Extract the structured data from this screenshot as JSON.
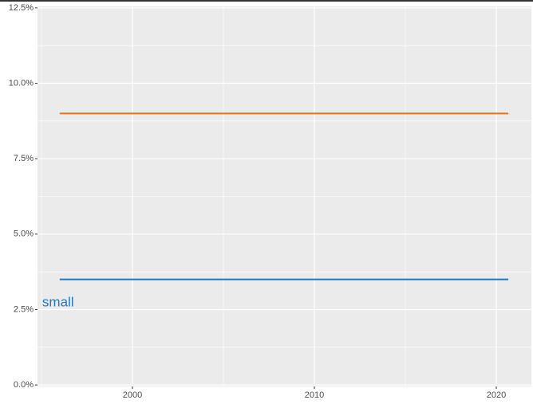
{
  "chart_data": {
    "type": "line",
    "x": [
      1996,
      2020.66
    ],
    "series": [
      {
        "color": "#e8731a",
        "values": [
          9.0,
          9.0
        ]
      },
      {
        "color": "#1f78c1",
        "values": [
          3.5,
          3.5
        ]
      }
    ],
    "xlim": [
      1994.78,
      2021.93
    ],
    "xticks": [
      2000,
      2010,
      2020
    ],
    "x_minor_grid": [
      1995,
      2005,
      2015
    ],
    "ylim": [
      -0.05,
      12.55
    ],
    "yticks": [
      {
        "value": 0,
        "label": "0.0%"
      },
      {
        "value": 2.5,
        "label": "2.5%"
      },
      {
        "value": 5,
        "label": "5.0%"
      },
      {
        "value": 7.5,
        "label": "7.5%"
      },
      {
        "value": 10,
        "label": "10.0%"
      },
      {
        "value": 12.5,
        "label": "12.5%"
      }
    ],
    "y_minor_grid": [
      1.25,
      3.75,
      6.25,
      8.75,
      11.25
    ],
    "grid": true,
    "annotations": [
      {
        "text": "small",
        "x": 1995.04,
        "y": 2.72,
        "color": "#1f78c1"
      }
    ]
  }
}
